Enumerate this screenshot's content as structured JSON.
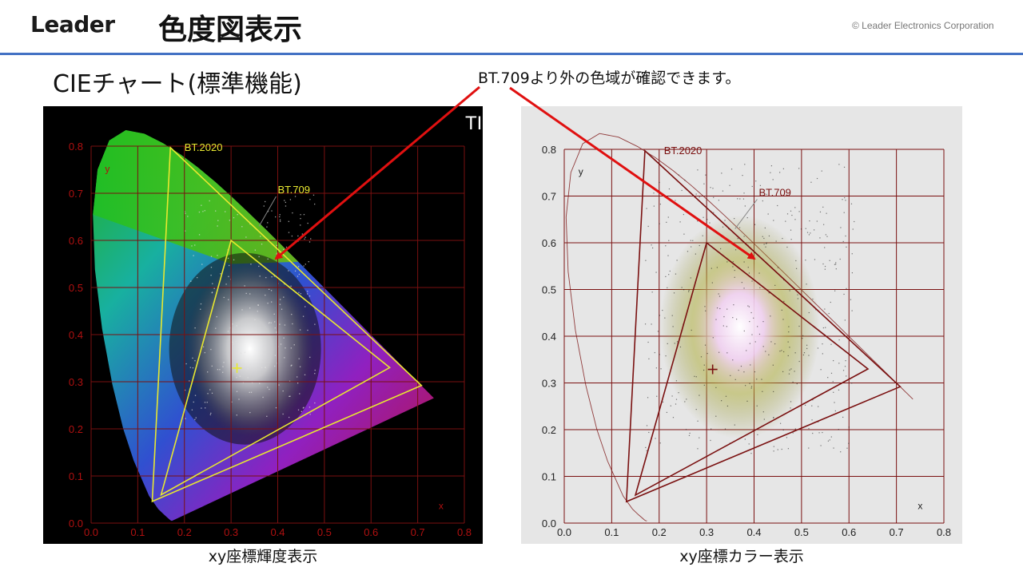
{
  "header": {
    "logo": "Leader",
    "title": "色度図表示",
    "copyright": "© Leader Electronics Corporation"
  },
  "section_title": "CIEチャート(標準機能)",
  "callout": "BT.709より外の色域が確認できます。",
  "left_panel": {
    "caption": "xy座標輝度表示",
    "overlay_text": "TII",
    "background": "#000000",
    "grid_color": "#7a1010",
    "axis_label_color": "#b01010",
    "gamut_color": "#e8e830"
  },
  "right_panel": {
    "caption": "xy座標カラー表示",
    "background": "#e6e6e6",
    "grid_color": "#7a1010",
    "axis_label_color": "#7a1010",
    "gamut_color": "#7a1010"
  },
  "arrow_color": "#e01010",
  "chart_data": {
    "type": "scatter",
    "xlabel": "x",
    "ylabel": "y",
    "xlim": [
      0.0,
      0.8
    ],
    "ylim": [
      0.0,
      0.8
    ],
    "x_ticks": [
      "0.0",
      "0.1",
      "0.2",
      "0.3",
      "0.4",
      "0.5",
      "0.6",
      "0.7",
      "0.8"
    ],
    "y_ticks": [
      "0.0",
      "0.1",
      "0.2",
      "0.3",
      "0.4",
      "0.5",
      "0.6",
      "0.7",
      "0.8"
    ],
    "grid": true,
    "white_point": {
      "x": 0.3127,
      "y": 0.329
    },
    "gamuts": [
      {
        "name": "BT.2020",
        "points": [
          [
            0.708,
            0.292
          ],
          [
            0.17,
            0.797
          ],
          [
            0.131,
            0.046
          ]
        ]
      },
      {
        "name": "BT.709",
        "points": [
          [
            0.64,
            0.33
          ],
          [
            0.3,
            0.6
          ],
          [
            0.15,
            0.06
          ]
        ]
      }
    ]
  }
}
